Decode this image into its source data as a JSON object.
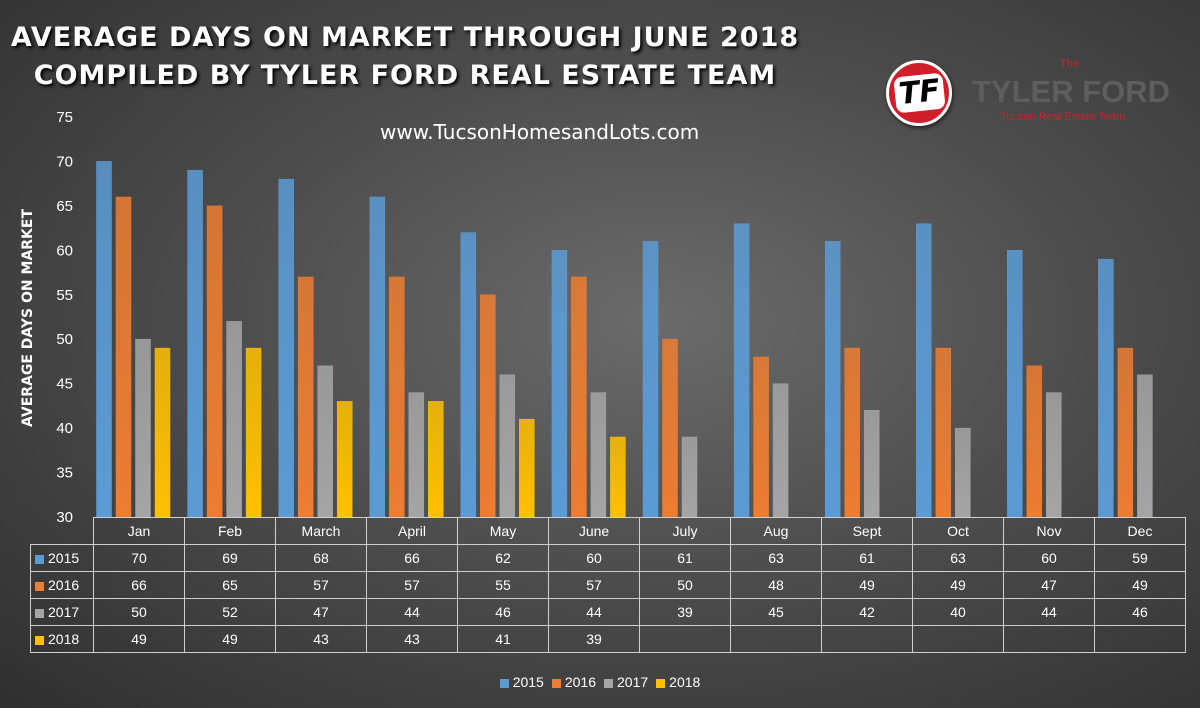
{
  "header": {
    "title_line1": "AVERAGE DAYS ON MARKET THROUGH JUNE 2018",
    "title_line2": "COMPILED BY TYLER FORD REAL ESTATE TEAM",
    "website": "www.TucsonHomesandLots.com"
  },
  "brand": {
    "logo_mark": "TF",
    "the": "The",
    "name": "TYLER FORD",
    "subtitle": "Tucson Real Estate Team",
    "accent_color": "#d01f2b"
  },
  "chart_data": {
    "type": "bar",
    "title": "AVERAGE DAYS ON MARKET THROUGH JUNE 2018",
    "subtitle": "COMPILED BY TYLER FORD REAL ESTATE TEAM",
    "xlabel": "",
    "ylabel": "AVERAGE DAYS ON MARKET",
    "ylim": [
      30,
      75
    ],
    "yticks": [
      30,
      35,
      40,
      45,
      50,
      55,
      60,
      65,
      70,
      75
    ],
    "grid": false,
    "legend_position": "bottom",
    "categories": [
      "Jan",
      "Feb",
      "March",
      "April",
      "May",
      "June",
      "July",
      "Aug",
      "Sept",
      "Oct",
      "Nov",
      "Dec"
    ],
    "series": [
      {
        "name": "2015",
        "color": "#5b9bd5",
        "values": [
          70,
          69,
          68,
          66,
          62,
          60,
          61,
          63,
          61,
          63,
          60,
          59
        ]
      },
      {
        "name": "2016",
        "color": "#ed7d31",
        "values": [
          66,
          65,
          57,
          57,
          55,
          57,
          50,
          48,
          49,
          49,
          47,
          49
        ]
      },
      {
        "name": "2017",
        "color": "#a5a5a5",
        "values": [
          50,
          52,
          47,
          44,
          46,
          44,
          39,
          45,
          42,
          40,
          44,
          46
        ]
      },
      {
        "name": "2018",
        "color": "#ffc000",
        "values": [
          49,
          49,
          43,
          43,
          41,
          39,
          null,
          null,
          null,
          null,
          null,
          null
        ]
      }
    ]
  }
}
